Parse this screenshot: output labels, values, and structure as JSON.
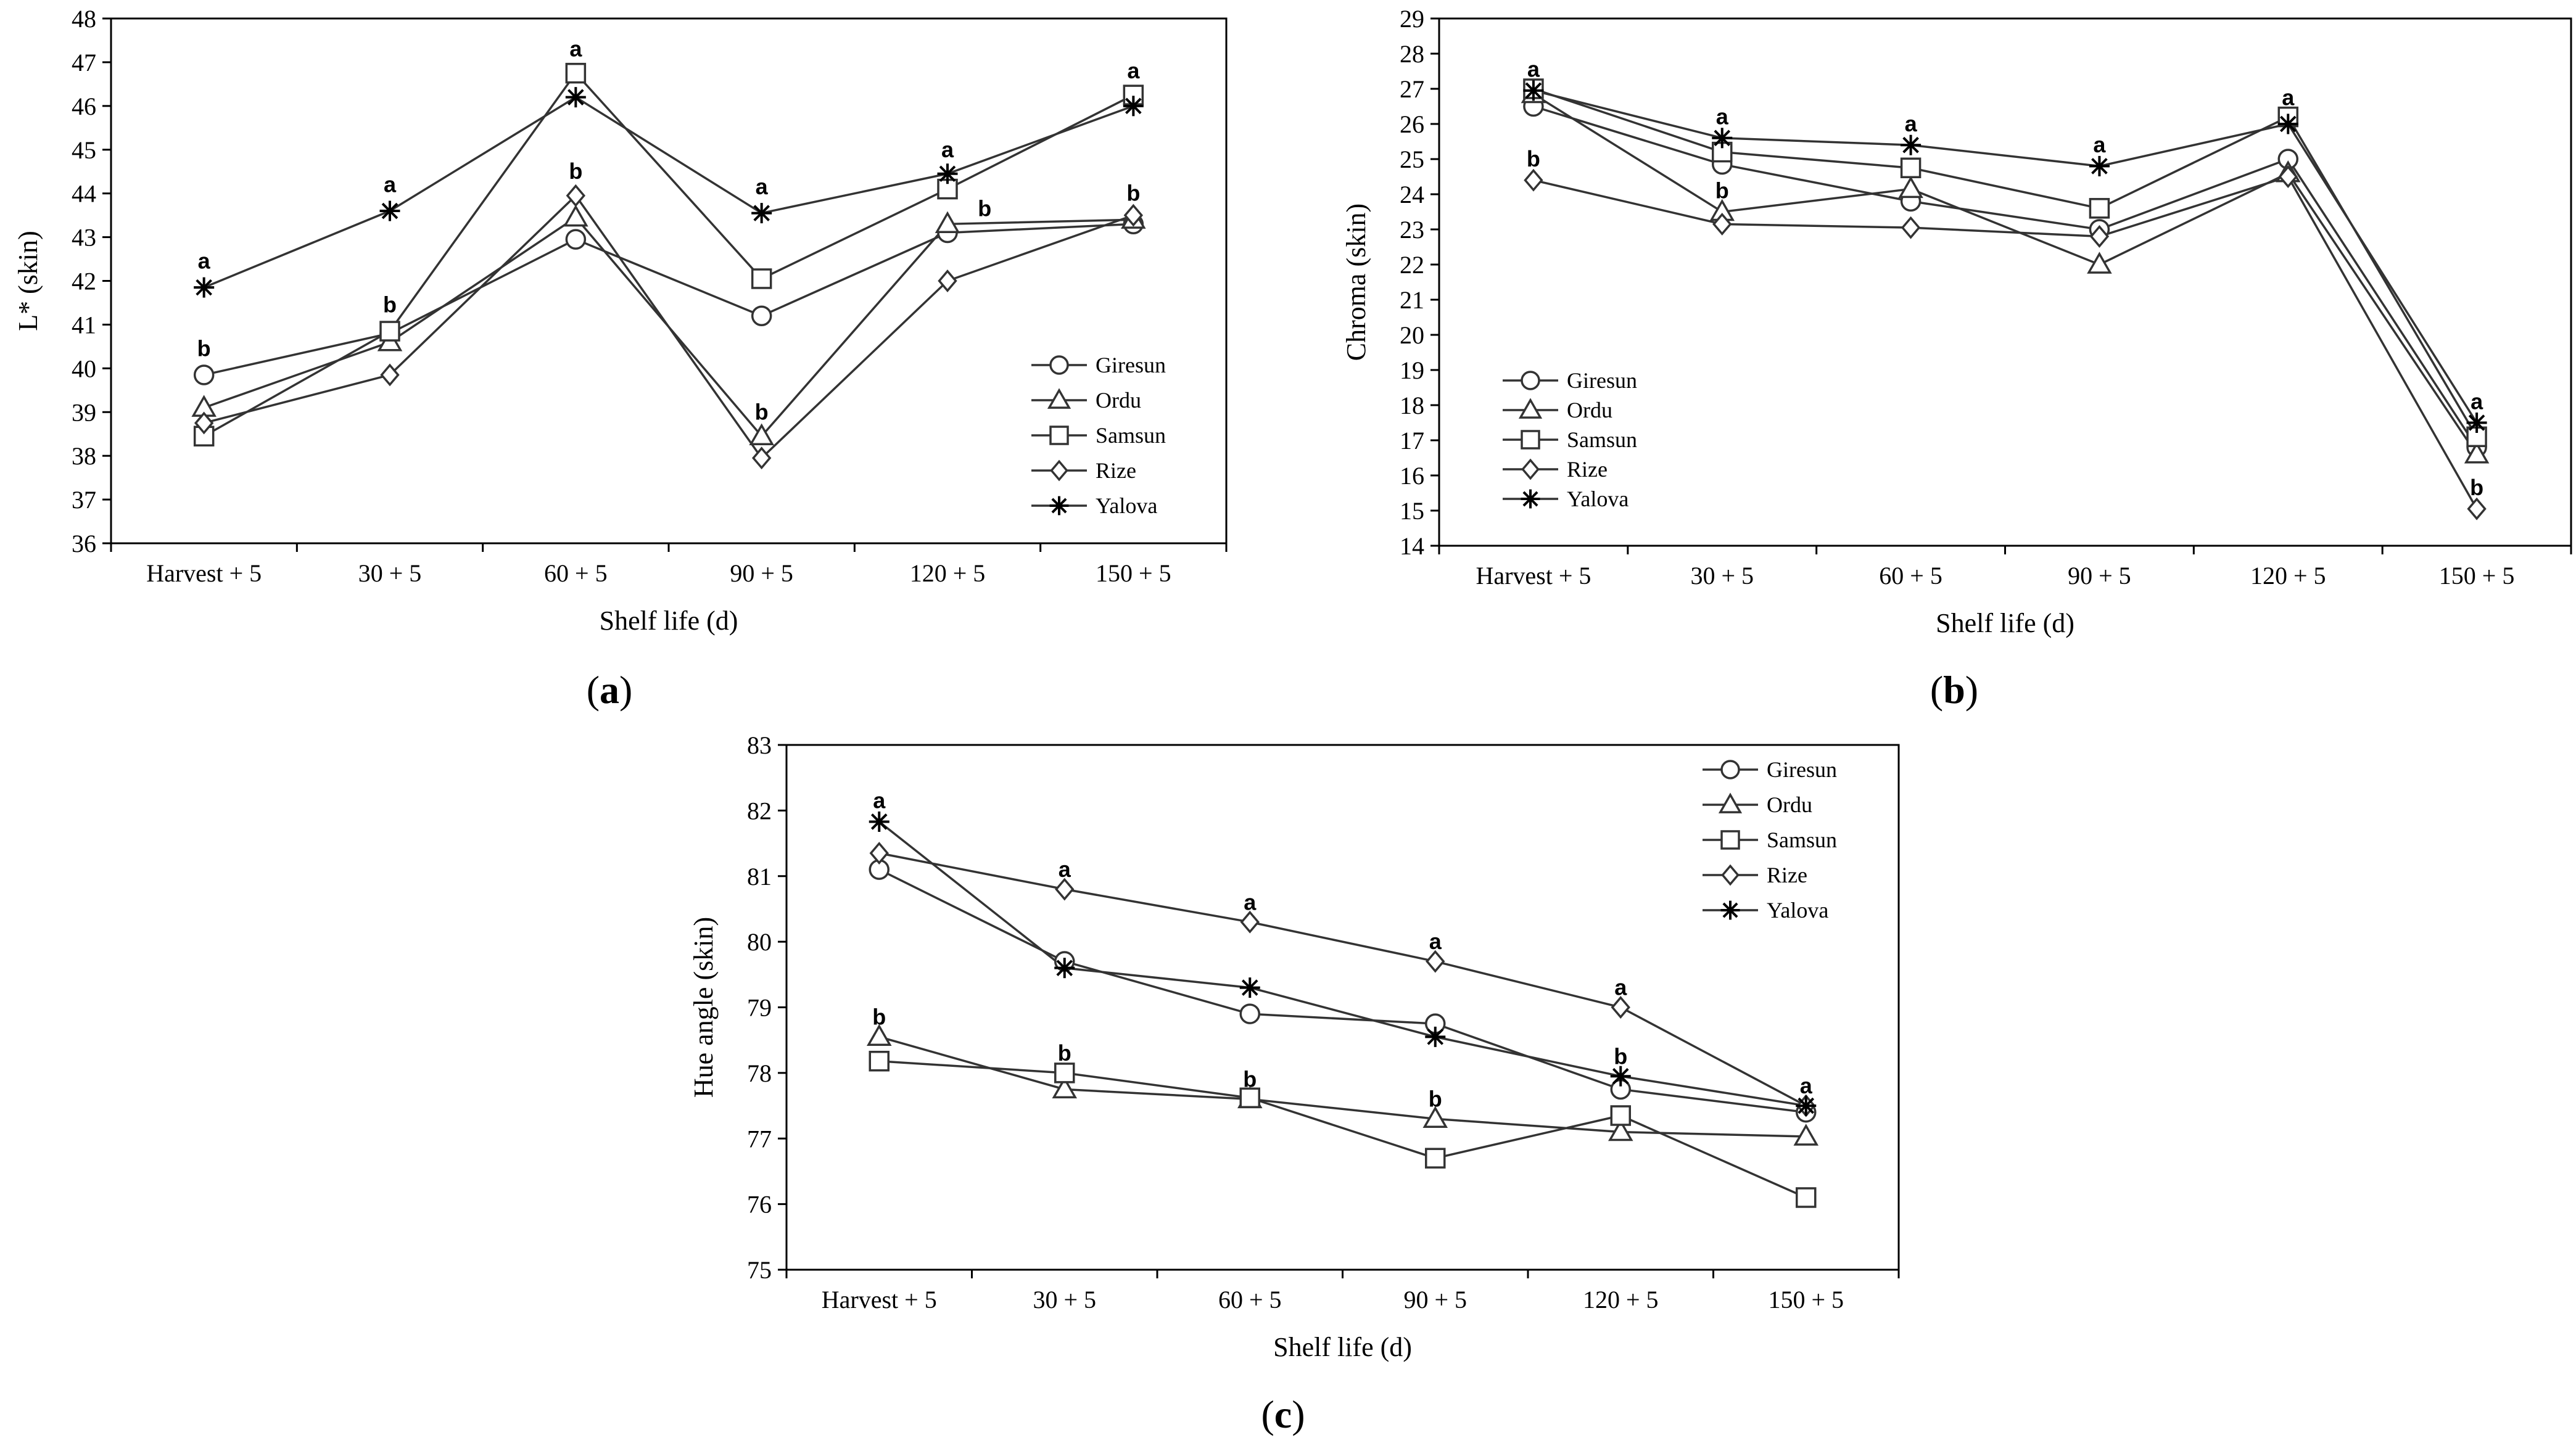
{
  "figure": {
    "series_names": [
      "Giresun",
      "Ordu",
      "Samsun",
      "Rize",
      "Yalova"
    ],
    "series_markers": [
      "circle",
      "triangle",
      "square",
      "diamond",
      "asterisk"
    ],
    "line_color": "#333333",
    "axis_color": "#000000"
  },
  "chart_data": [
    {
      "type": "line",
      "panel_label": "a",
      "xlabel": "Shelf life (d)",
      "ylabel": "L* (skin)",
      "categories": [
        "Harvest + 5",
        "30 + 5",
        "60 + 5",
        "90 + 5",
        "120 + 5",
        "150 + 5"
      ],
      "ylim": [
        36,
        48
      ],
      "yticks": [
        36,
        37,
        38,
        39,
        40,
        41,
        42,
        43,
        44,
        45,
        46,
        47,
        48
      ],
      "legend_position": "bottom-right",
      "series": [
        {
          "name": "Giresun",
          "marker": "circle",
          "values": [
            39.85,
            40.8,
            42.95,
            41.2,
            43.1,
            43.3
          ]
        },
        {
          "name": "Ordu",
          "marker": "triangle",
          "values": [
            39.1,
            40.6,
            43.45,
            38.45,
            43.3,
            43.4
          ]
        },
        {
          "name": "Samsun",
          "marker": "square",
          "values": [
            38.45,
            40.85,
            46.75,
            42.05,
            44.1,
            46.25
          ]
        },
        {
          "name": "Rize",
          "marker": "diamond",
          "values": [
            38.75,
            39.85,
            43.95,
            37.95,
            42.0,
            43.5
          ]
        },
        {
          "name": "Yalova",
          "marker": "asterisk",
          "values": [
            41.85,
            43.6,
            46.2,
            43.55,
            44.45,
            46.0
          ]
        }
      ],
      "annotations": [
        {
          "text": "a",
          "x": "Harvest + 5",
          "y": 42.45
        },
        {
          "text": "b",
          "x": "Harvest + 5",
          "y": 40.45
        },
        {
          "text": "a",
          "x": "30 + 5",
          "y": 44.2
        },
        {
          "text": "b",
          "x": "30 + 5",
          "y": 41.45
        },
        {
          "text": "a",
          "x": "60 + 5",
          "y": 47.3
        },
        {
          "text": "b",
          "x": "60 + 5",
          "y": 44.5
        },
        {
          "text": "a",
          "x": "90 + 5",
          "y": 44.15
        },
        {
          "text": "b",
          "x": "90 + 5",
          "y": 39.0
        },
        {
          "text": "a",
          "x": "120 + 5",
          "y": 45.0
        },
        {
          "text": "b",
          "x": "120 + 5",
          "y": 43.65,
          "dx": 0.2
        },
        {
          "text": "a",
          "x": "150 + 5",
          "y": 46.8
        },
        {
          "text": "b",
          "x": "150 + 5",
          "y": 44.0
        }
      ]
    },
    {
      "type": "line",
      "panel_label": "b",
      "xlabel": "Shelf life (d)",
      "ylabel": "Chroma (skin)",
      "categories": [
        "Harvest + 5",
        "30 + 5",
        "60 + 5",
        "90 + 5",
        "120 + 5",
        "150 + 5"
      ],
      "ylim": [
        14,
        29
      ],
      "yticks": [
        14,
        15,
        16,
        17,
        18,
        19,
        20,
        21,
        22,
        23,
        24,
        25,
        26,
        27,
        28,
        29
      ],
      "legend_position": "bottom-left",
      "series": [
        {
          "name": "Giresun",
          "marker": "circle",
          "values": [
            26.5,
            24.85,
            23.8,
            23.0,
            25.0,
            16.8
          ]
        },
        {
          "name": "Ordu",
          "marker": "triangle",
          "values": [
            26.85,
            23.5,
            24.15,
            22.0,
            24.6,
            16.6
          ]
        },
        {
          "name": "Samsun",
          "marker": "square",
          "values": [
            27.0,
            25.2,
            24.75,
            23.6,
            26.2,
            17.1
          ]
        },
        {
          "name": "Rize",
          "marker": "diamond",
          "values": [
            24.4,
            23.15,
            23.05,
            22.8,
            24.5,
            15.05
          ]
        },
        {
          "name": "Yalova",
          "marker": "asterisk",
          "values": [
            26.95,
            25.6,
            25.4,
            24.8,
            26.0,
            17.5
          ]
        }
      ],
      "annotations": [
        {
          "text": "a",
          "x": "Harvest + 5",
          "y": 27.55
        },
        {
          "text": "b",
          "x": "Harvest + 5",
          "y": 25.0
        },
        {
          "text": "a",
          "x": "30 + 5",
          "y": 26.2
        },
        {
          "text": "b",
          "x": "30 + 5",
          "y": 24.1
        },
        {
          "text": "a",
          "x": "60 + 5",
          "y": 26.0
        },
        {
          "text": "a",
          "x": "90 + 5",
          "y": 25.4
        },
        {
          "text": "a",
          "x": "120 + 5",
          "y": 26.75
        },
        {
          "text": "a",
          "x": "150 + 5",
          "y": 18.1
        },
        {
          "text": "b",
          "x": "150 + 5",
          "y": 15.65
        }
      ]
    },
    {
      "type": "line",
      "panel_label": "c",
      "xlabel": "Shelf life (d)",
      "ylabel": "Hue angle (skin)",
      "categories": [
        "Harvest + 5",
        "30 + 5",
        "60 + 5",
        "90 + 5",
        "120 + 5",
        "150 + 5"
      ],
      "ylim": [
        75,
        83
      ],
      "yticks": [
        75,
        76,
        77,
        78,
        79,
        80,
        81,
        82,
        83
      ],
      "legend_position": "top-right",
      "series": [
        {
          "name": "Giresun",
          "marker": "circle",
          "values": [
            81.1,
            79.7,
            78.9,
            78.75,
            77.75,
            77.4
          ]
        },
        {
          "name": "Ordu",
          "marker": "triangle",
          "values": [
            78.55,
            77.75,
            77.6,
            77.3,
            77.1,
            77.03
          ]
        },
        {
          "name": "Samsun",
          "marker": "square",
          "values": [
            78.18,
            78.0,
            77.62,
            76.7,
            77.35,
            76.1
          ]
        },
        {
          "name": "Rize",
          "marker": "diamond",
          "values": [
            81.35,
            80.8,
            80.3,
            79.7,
            79.0,
            77.5
          ]
        },
        {
          "name": "Yalova",
          "marker": "asterisk",
          "values": [
            81.83,
            79.6,
            79.3,
            78.55,
            77.95,
            77.5
          ]
        }
      ],
      "annotations": [
        {
          "text": "a",
          "x": "Harvest + 5",
          "y": 82.15
        },
        {
          "text": "b",
          "x": "Harvest + 5",
          "y": 78.85
        },
        {
          "text": "a",
          "x": "30 + 5",
          "y": 81.1
        },
        {
          "text": "b",
          "x": "30 + 5",
          "y": 78.3
        },
        {
          "text": "a",
          "x": "60 + 5",
          "y": 80.6
        },
        {
          "text": "b",
          "x": "60 + 5",
          "y": 77.9
        },
        {
          "text": "a",
          "x": "90 + 5",
          "y": 80.0
        },
        {
          "text": "b",
          "x": "90 + 5",
          "y": 77.6
        },
        {
          "text": "a",
          "x": "120 + 5",
          "y": 79.3
        },
        {
          "text": "b",
          "x": "120 + 5",
          "y": 78.25
        },
        {
          "text": "a",
          "x": "150 + 5",
          "y": 77.8
        }
      ]
    }
  ]
}
